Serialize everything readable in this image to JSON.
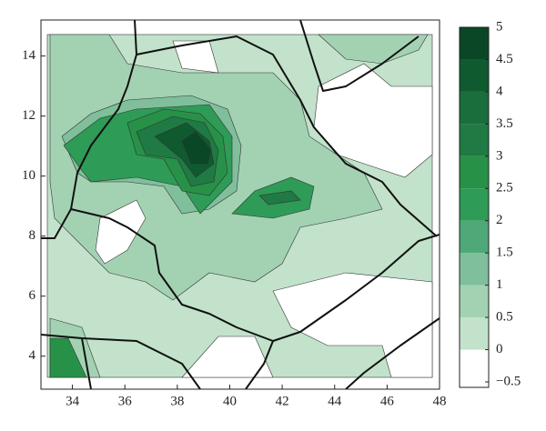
{
  "chart_data": {
    "type": "contour",
    "xlim": [
      32.8,
      48
    ],
    "xticks": [
      34,
      36,
      38,
      40,
      42,
      44,
      46,
      48
    ],
    "ylim": [
      2.9,
      15.2
    ],
    "yticks": [
      4,
      6,
      8,
      10,
      12,
      14
    ],
    "colorbar": {
      "ticks": [
        {
          "value": -0.5,
          "label": "−0.5"
        },
        0,
        0.5,
        1,
        1.5,
        2,
        2.5,
        3,
        3.5,
        4,
        4.5,
        5
      ],
      "colors": [
        "#ffffff",
        "#c2e2cb",
        "#a3d2b3",
        "#7fbf9b",
        "#4fa878",
        "#2e9b56",
        "#279148",
        "#1f7a43",
        "#1a6e3c",
        "#0f5a2f",
        "#0a4726"
      ]
    }
  }
}
